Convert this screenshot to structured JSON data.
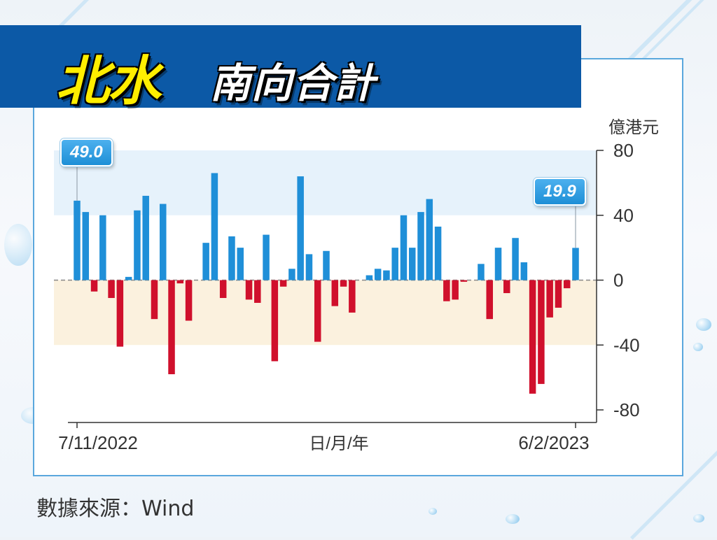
{
  "header": {
    "title_highlight": "北水",
    "title_rest": "南向合計"
  },
  "source": "數據來源：Wind",
  "colors": {
    "positive": "#1f8fd8",
    "negative": "#d0102c",
    "banner": "#0c59a6",
    "band_top": "#e6f2fb",
    "band_bottom": "#fbf1de"
  },
  "chart_data": {
    "type": "bar",
    "ylabel": "億港元",
    "xlabel": "日/月/年",
    "ylim": [
      -80,
      80
    ],
    "yticks": [
      80,
      40,
      0,
      -40,
      -80
    ],
    "first_date_label": "7/11/2022",
    "last_date_label": "6/2/2023",
    "first_value_label": "49.0",
    "last_value_label": "19.9",
    "values": [
      49.0,
      42,
      -7,
      40,
      -11,
      -41,
      2,
      43,
      52,
      -24,
      47,
      -58,
      -2,
      -25,
      0,
      23,
      66,
      -11,
      27,
      20,
      -12,
      -14,
      28,
      -50,
      -4,
      7,
      64,
      16,
      -38,
      18,
      -16,
      -4,
      -20,
      0,
      3,
      7,
      6,
      20,
      40,
      20,
      42,
      50,
      33,
      -13,
      -12,
      -1,
      0,
      10,
      -24,
      20,
      -8,
      26,
      11,
      -70,
      -64,
      -23,
      -17,
      -5,
      19.9
    ],
    "band_ranges": [
      [
        40,
        80
      ],
      [
        -40,
        0
      ]
    ],
    "grid": false,
    "legend": "none"
  }
}
